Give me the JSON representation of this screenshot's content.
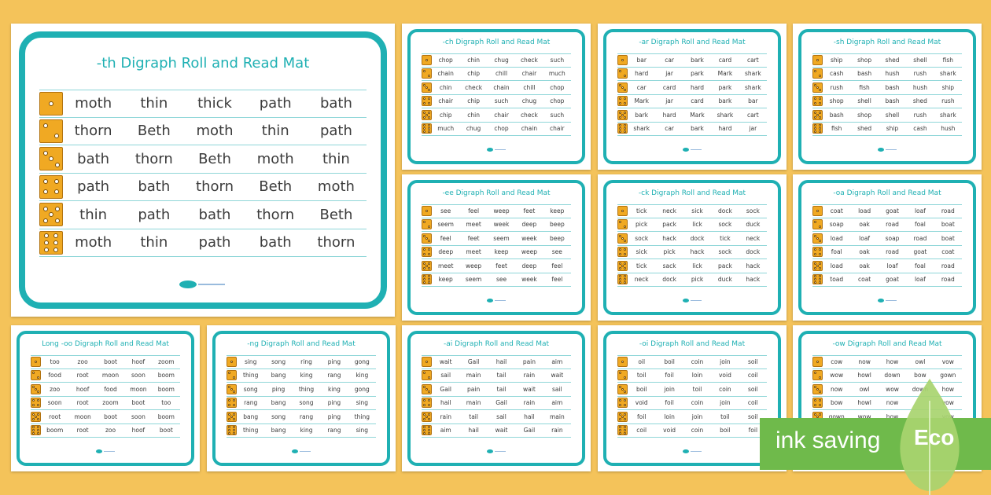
{
  "big_card": {
    "title": "-th Digraph Roll and Read Mat",
    "rows": [
      [
        "moth",
        "thin",
        "thick",
        "path",
        "bath"
      ],
      [
        "thorn",
        "Beth",
        "moth",
        "thin",
        "path"
      ],
      [
        "bath",
        "thorn",
        "Beth",
        "moth",
        "thin"
      ],
      [
        "path",
        "bath",
        "thorn",
        "Beth",
        "moth"
      ],
      [
        "thin",
        "path",
        "bath",
        "thorn",
        "Beth"
      ],
      [
        "moth",
        "thin",
        "path",
        "bath",
        "thorn"
      ]
    ]
  },
  "small_cards": [
    {
      "title": "-ch Digraph Roll and Read Mat",
      "rows": [
        [
          "chop",
          "chin",
          "chug",
          "check",
          "such"
        ],
        [
          "chain",
          "chip",
          "chill",
          "chair",
          "much"
        ],
        [
          "chin",
          "check",
          "chain",
          "chill",
          "chop"
        ],
        [
          "chair",
          "chip",
          "such",
          "chug",
          "chop"
        ],
        [
          "chip",
          "chin",
          "chair",
          "check",
          "such"
        ],
        [
          "much",
          "chug",
          "chop",
          "chain",
          "chair"
        ]
      ]
    },
    {
      "title": "-ar Digraph Roll and Read Mat",
      "rows": [
        [
          "bar",
          "car",
          "bark",
          "card",
          "cart"
        ],
        [
          "hard",
          "jar",
          "park",
          "Mark",
          "shark"
        ],
        [
          "car",
          "card",
          "hard",
          "park",
          "shark"
        ],
        [
          "Mark",
          "jar",
          "card",
          "bark",
          "bar"
        ],
        [
          "bark",
          "hard",
          "Mark",
          "shark",
          "cart"
        ],
        [
          "shark",
          "car",
          "bark",
          "hard",
          "jar"
        ]
      ]
    },
    {
      "title": "-sh Digraph Roll and Read Mat",
      "rows": [
        [
          "ship",
          "shop",
          "shed",
          "shell",
          "fish"
        ],
        [
          "cash",
          "bash",
          "hush",
          "rush",
          "shark"
        ],
        [
          "rush",
          "fish",
          "bash",
          "hush",
          "ship"
        ],
        [
          "shop",
          "shell",
          "bash",
          "shed",
          "rush"
        ],
        [
          "bash",
          "shop",
          "shell",
          "rush",
          "shark"
        ],
        [
          "fish",
          "shed",
          "ship",
          "cash",
          "hush"
        ]
      ]
    },
    {
      "title": "-ee Digraph Roll and Read Mat",
      "rows": [
        [
          "see",
          "feel",
          "weep",
          "feet",
          "keep"
        ],
        [
          "seem",
          "meet",
          "week",
          "deep",
          "beep"
        ],
        [
          "feel",
          "feet",
          "seem",
          "week",
          "beep"
        ],
        [
          "deep",
          "meet",
          "keep",
          "weep",
          "see"
        ],
        [
          "meet",
          "weep",
          "feet",
          "deep",
          "feel"
        ],
        [
          "keep",
          "seem",
          "see",
          "week",
          "feel"
        ]
      ]
    },
    {
      "title": "-ck Digraph Roll and Read Mat",
      "rows": [
        [
          "tick",
          "neck",
          "sick",
          "dock",
          "sock"
        ],
        [
          "pick",
          "pack",
          "lick",
          "sock",
          "duck"
        ],
        [
          "sock",
          "hack",
          "dock",
          "tick",
          "neck"
        ],
        [
          "sick",
          "pick",
          "hack",
          "sock",
          "dock"
        ],
        [
          "tick",
          "sack",
          "lick",
          "pack",
          "hack"
        ],
        [
          "neck",
          "dock",
          "pick",
          "duck",
          "hack"
        ]
      ]
    },
    {
      "title": "-oa Digraph Roll and Read Mat",
      "rows": [
        [
          "coat",
          "load",
          "goat",
          "loaf",
          "road"
        ],
        [
          "soap",
          "oak",
          "road",
          "foal",
          "boat"
        ],
        [
          "load",
          "loaf",
          "soap",
          "road",
          "boat"
        ],
        [
          "foal",
          "oak",
          "road",
          "goat",
          "coat"
        ],
        [
          "load",
          "oak",
          "loaf",
          "foal",
          "road"
        ],
        [
          "toad",
          "coat",
          "goat",
          "loaf",
          "road"
        ]
      ]
    },
    {
      "title": "Long -oo Digraph Roll and Read Mat",
      "rows": [
        [
          "too",
          "zoo",
          "boot",
          "hoof",
          "zoom"
        ],
        [
          "food",
          "root",
          "moon",
          "soon",
          "boom"
        ],
        [
          "zoo",
          "hoof",
          "food",
          "moon",
          "boom"
        ],
        [
          "soon",
          "root",
          "zoom",
          "boot",
          "too"
        ],
        [
          "root",
          "moon",
          "boot",
          "soon",
          "boom"
        ],
        [
          "boom",
          "root",
          "zoo",
          "hoof",
          "boot"
        ]
      ]
    },
    {
      "title": "-ng Digraph Roll and Read Mat",
      "rows": [
        [
          "sing",
          "song",
          "ring",
          "ping",
          "gong"
        ],
        [
          "thing",
          "bang",
          "king",
          "rang",
          "king"
        ],
        [
          "song",
          "ping",
          "thing",
          "king",
          "gong"
        ],
        [
          "rang",
          "bang",
          "song",
          "ping",
          "sing"
        ],
        [
          "bang",
          "song",
          "rang",
          "ping",
          "thing"
        ],
        [
          "thing",
          "bang",
          "king",
          "rang",
          "sing"
        ]
      ]
    },
    {
      "title": "-ai Digraph Roll and Read Mat",
      "rows": [
        [
          "wait",
          "Gail",
          "hail",
          "pain",
          "aim"
        ],
        [
          "sail",
          "main",
          "tail",
          "rain",
          "wait"
        ],
        [
          "Gail",
          "pain",
          "tail",
          "wait",
          "sail"
        ],
        [
          "hail",
          "main",
          "Gail",
          "rain",
          "aim"
        ],
        [
          "rain",
          "tail",
          "sail",
          "hail",
          "main"
        ],
        [
          "aim",
          "hail",
          "wait",
          "Gail",
          "rain"
        ]
      ]
    },
    {
      "title": "-oi Digraph Roll and Read Mat",
      "rows": [
        [
          "oil",
          "boil",
          "coin",
          "join",
          "soil"
        ],
        [
          "toil",
          "foil",
          "loin",
          "void",
          "coil"
        ],
        [
          "boil",
          "join",
          "toil",
          "coin",
          "soil"
        ],
        [
          "void",
          "foil",
          "coin",
          "join",
          "coil"
        ],
        [
          "foil",
          "loin",
          "join",
          "toil",
          "soil"
        ],
        [
          "coil",
          "void",
          "coin",
          "boil",
          "foil"
        ]
      ]
    },
    {
      "title": "-ow Digraph Roll and Read Mat",
      "rows": [
        [
          "cow",
          "now",
          "how",
          "owl",
          "vow"
        ],
        [
          "wow",
          "howl",
          "down",
          "bow",
          "gown"
        ],
        [
          "now",
          "owl",
          "wow",
          "down",
          "how"
        ],
        [
          "bow",
          "howl",
          "now",
          "",
          "vow"
        ],
        [
          "gown",
          "wow",
          "how",
          "",
          "vow"
        ],
        [
          "",
          "",
          "",
          "",
          ""
        ]
      ]
    }
  ],
  "eco_badge": {
    "text": "ink saving",
    "label": "Eco"
  },
  "colors": {
    "background": "#f4c35a",
    "accent": "#1fb0b3",
    "die": "#f0a923",
    "eco": "#6fba4b"
  }
}
